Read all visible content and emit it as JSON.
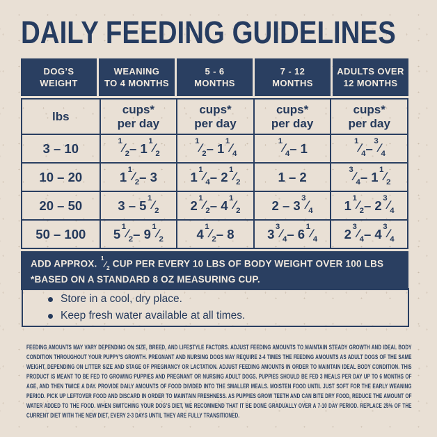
{
  "title": "DAILY FEEDING GUIDELINES",
  "table": {
    "columns": [
      {
        "header": [
          "DOG’S",
          "WEIGHT"
        ],
        "unit": [
          "lbs",
          ""
        ]
      },
      {
        "header": [
          "WEANING",
          "TO 4 MONTHS"
        ],
        "unit": [
          "cups*",
          "per day"
        ]
      },
      {
        "header": [
          "5 - 6",
          "MONTHS"
        ],
        "unit": [
          "cups*",
          "per day"
        ]
      },
      {
        "header": [
          "7 - 12",
          "MONTHS"
        ],
        "unit": [
          "cups*",
          "per day"
        ]
      },
      {
        "header": [
          "ADULTS OVER",
          "12 MONTHS"
        ],
        "unit": [
          "cups*",
          "per day"
        ]
      }
    ],
    "rows": [
      [
        "3 – 10",
        "[1/2] – 1[1/2]",
        "[1/2] – 1[1/4]",
        "[1/4] – 1",
        "[1/4] – [3/4]"
      ],
      [
        "10 – 20",
        "1[1/2] – 3",
        "1[1/4] – 2[1/2]",
        "1 – 2",
        "[3/4] – 1[1/2]"
      ],
      [
        "20 – 50",
        "3 – 5[1/2]",
        "2[1/2] – 4[1/2]",
        "2 – 3[3/4]",
        "1[1/2] – 2[3/4]"
      ],
      [
        "50 – 100",
        "5[1/2] – 9[1/2]",
        "4[1/2] – 8",
        "3[3/4] – 6[1/4]",
        "2[3/4] – 4[3/4]"
      ]
    ],
    "footnote_line1": "ADD APPROX. [1/2] CUP PER EVERY 10 LBS OF BODY WEIGHT OVER 100 LBS",
    "footnote_line2": "*BASED ON A STANDARD 8 OZ MEASURING CUP."
  },
  "tips": [
    "Store in a cool, dry place.",
    "Keep fresh water available at all times."
  ],
  "fine_print": "FEEDING AMOUNTS MAY VARY DEPENDING ON SIZE, BREED, AND LIFESTYLE FACTORS. ADJUST FEEDING AMOUNTS TO MAINTAIN STEADY GROWTH AND IDEAL BODY CONDITION THROUGHOUT YOUR PUPPY’S GROWTH. PREGNANT AND NURSING DOGS MAY REQUIRE 2-4 TIMES THE FEEDING AMOUNTS AS ADULT DOGS OF THE SAME WEIGHT, DEPENDING ON LITTER SIZE AND STAGE OF PREGNANCY OR LACTATION. ADJUST FEEDING AMOUNTS IN ORDER TO MAINTAIN IDEAL BODY CONDITION. THIS PRODUCT IS MEANT TO BE FED TO GROWING PUPPIES AND PREGNANT OR NURSING ADULT DOGS. PUPPIES SHOULD BE FED 3 MEALS PER DAY UP TO 6 MONTHS OF AGE, AND THEN TWICE A DAY. PROVIDE DAILY AMOUNTS OF FOOD DIVIDED INTO THE SMALLER MEALS. MOISTEN FOOD UNTIL JUST SOFT FOR THE EARLY WEANING PERIOD. PICK UP LEFTOVER FOOD AND DISCARD IN ORDER TO MAINTAIN FRESHNESS. AS PUPPIES GROW TEETH AND CAN BITE DRY FOOD, REDUCE THE AMOUNT OF WATER ADDED TO THE FOOD. WHEN SWITCHING YOUR DOG’S DIET, WE RECOMMEND THAT IT BE DONE GRADUALLY OVER A 7-10 DAY PERIOD. REPLACE 25% OF THE CURRENT DIET WITH THE NEW DIET, EVERY 2-3 DAYS UNTIL THEY ARE FULLY TRANSITIONED.",
  "colors": {
    "navy": "#2a3f61",
    "cream": "#e9e0d5",
    "band_text": "#f1e9de"
  }
}
